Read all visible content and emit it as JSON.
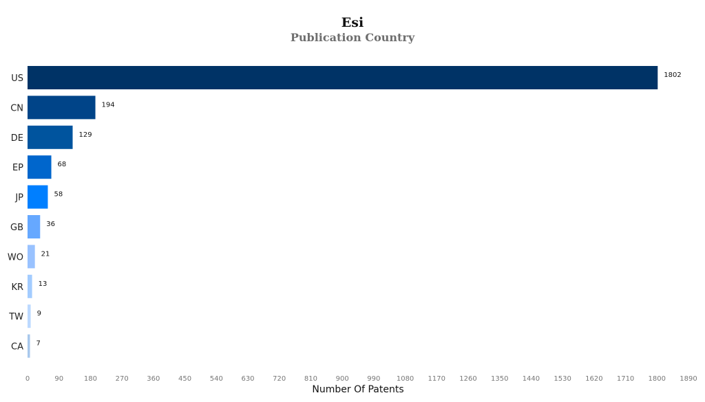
{
  "chart_data": {
    "type": "bar",
    "orientation": "horizontal",
    "title": "Esi",
    "subtitle": "Publication Country",
    "xlabel": "Number Of Patents",
    "ylabel": "",
    "categories": [
      "US",
      "CN",
      "DE",
      "EP",
      "JP",
      "GB",
      "WO",
      "KR",
      "TW",
      "CA"
    ],
    "values": [
      1802,
      194,
      129,
      68,
      58,
      36,
      21,
      13,
      9,
      7
    ],
    "colors": [
      "#003366",
      "#004488",
      "#00549e",
      "#0066cc",
      "#007fff",
      "#66a8ff",
      "#99c2ff",
      "#a3ccff",
      "#bcd9ff",
      "#a8c8ec"
    ],
    "xlim": [
      0,
      1890
    ],
    "xticks": [
      0,
      90,
      180,
      270,
      360,
      450,
      540,
      630,
      720,
      810,
      900,
      990,
      1080,
      1170,
      1260,
      1350,
      1440,
      1530,
      1620,
      1710,
      1800,
      1890
    ],
    "grid": false,
    "legend": "none"
  }
}
